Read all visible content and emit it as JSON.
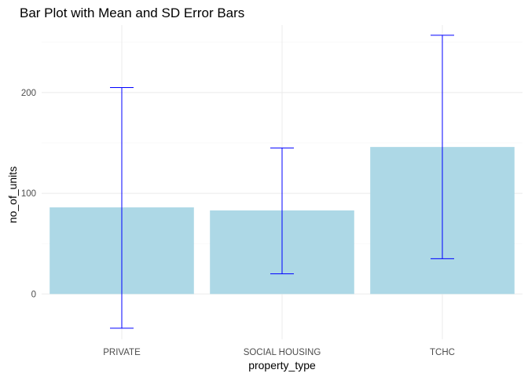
{
  "chart_data": {
    "type": "bar",
    "title": "Bar Plot with Mean and SD Error Bars",
    "xlabel": "property_type",
    "ylabel": "no_of_units",
    "categories": [
      "PRIVATE",
      "SOCIAL HOUSING",
      "TCHC"
    ],
    "values": [
      86,
      83,
      146
    ],
    "error_bars": [
      {
        "category": "PRIVATE",
        "low": -34,
        "high": 205
      },
      {
        "category": "SOCIAL HOUSING",
        "low": 20,
        "high": 145
      },
      {
        "category": "TCHC",
        "low": 35,
        "high": 257
      }
    ],
    "ylim": [
      -45,
      267
    ],
    "y_ticks": [
      0,
      100,
      200
    ],
    "y_tick_labels": [
      "0",
      "100",
      "200"
    ],
    "grid": true,
    "legend": "none",
    "colors": {
      "bar_fill": "#add8e6",
      "error_bar": "#0000ff",
      "grid_major": "#ebebeb",
      "grid_minor": "#f4f4f4"
    }
  }
}
